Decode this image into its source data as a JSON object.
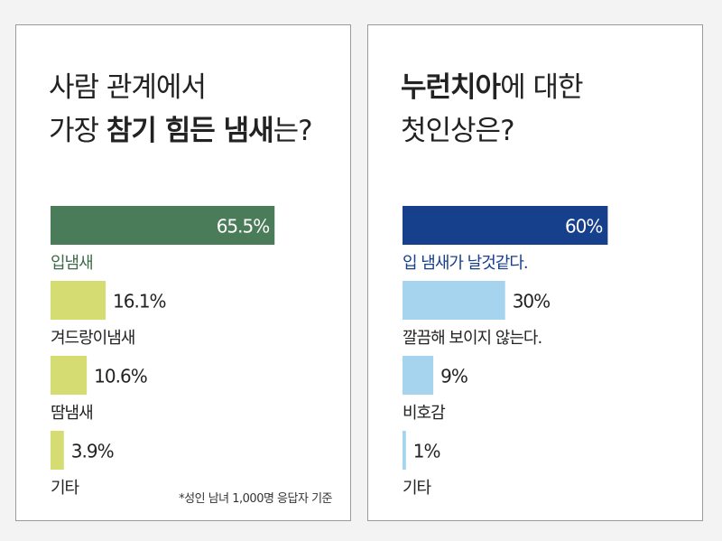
{
  "panels": [
    {
      "title_line1_part1": "사람 관계에서",
      "title_line2_part1": "가장 ",
      "title_line2_bold": "참기 힘든 냄새",
      "title_line2_part2": "는?",
      "note": "*성인 남녀 1,000명 응답자 기준"
    },
    {
      "title_line1_bold": "누런치아",
      "title_line1_part2": "에 대한",
      "title_line2_part1": "첫인상은?"
    }
  ],
  "chart_data": [
    {
      "type": "bar",
      "orientation": "horizontal",
      "categories": [
        "입냄새",
        "겨드랑이냄새",
        "땀냄새",
        "기타"
      ],
      "values": [
        65.5,
        16.1,
        10.6,
        3.9
      ],
      "value_labels": [
        "65.5%",
        "16.1%",
        "10.6%",
        "3.9%"
      ],
      "unit": "%",
      "xlim": [
        0,
        100
      ],
      "colors": [
        "#4a7c59",
        "#d4dc72",
        "#d4dc72",
        "#d4dc72"
      ],
      "highlight_label_color": "#3d6b4a"
    },
    {
      "type": "bar",
      "orientation": "horizontal",
      "categories": [
        "입 냄새가 날것같다.",
        "깔끔해 보이지 않는다.",
        "비호감",
        "기타"
      ],
      "values": [
        60,
        30,
        9,
        1
      ],
      "value_labels": [
        "60%",
        "30%",
        "9%",
        "1%"
      ],
      "unit": "%",
      "xlim": [
        0,
        100
      ],
      "colors": [
        "#163f8c",
        "#a6d3ee",
        "#a6d3ee",
        "#a6d3ee"
      ],
      "highlight_label_color": "#163f8c"
    }
  ]
}
